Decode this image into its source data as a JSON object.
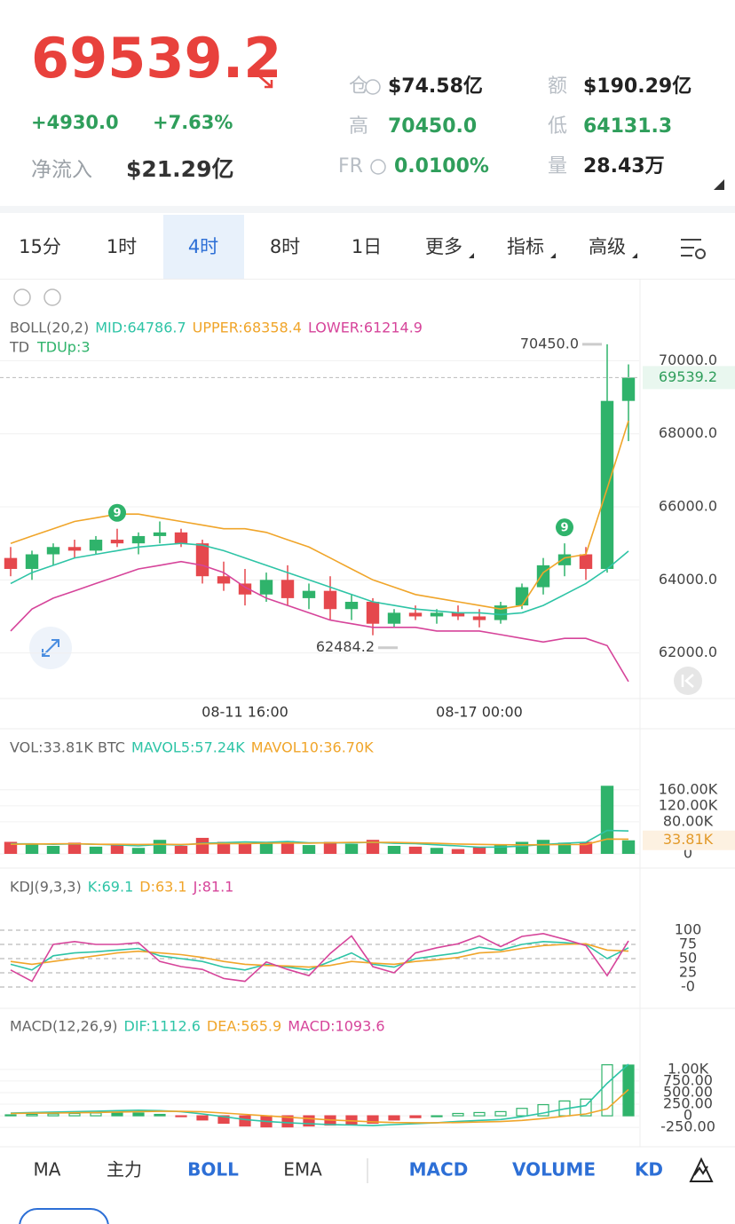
{
  "header": {
    "price": "69539.2",
    "change": "+4930.0",
    "change_pct": "+7.63%",
    "net_inflow_label": "净流入",
    "net_inflow": "$21.29亿",
    "stats": [
      {
        "label": "仓",
        "value": "$74.58亿",
        "color": "#222222"
      },
      {
        "label": "额",
        "value": "$190.29亿",
        "color": "#222222"
      },
      {
        "label": "高",
        "value": "70450.0",
        "color": "#2f9e5b"
      },
      {
        "label": "低",
        "value": "64131.3",
        "color": "#2f9e5b"
      },
      {
        "label": "FR",
        "value": "0.0100%",
        "color": "#2f9e5b"
      },
      {
        "label": "量",
        "value": "28.43万",
        "color": "#222222"
      }
    ]
  },
  "timeframes": [
    "15分",
    "1时",
    "4时",
    "8时",
    "1日"
  ],
  "active_timeframe": 2,
  "menus": [
    "更多",
    "指标",
    "高级"
  ],
  "indicator_tabs": [
    {
      "text": "MA",
      "active": false
    },
    {
      "text": "主力",
      "active": false
    },
    {
      "text": "BOLL",
      "active": true
    },
    {
      "text": "EMA",
      "active": false
    }
  ],
  "sub_tabs": [
    {
      "text": "MACD",
      "active": true
    },
    {
      "text": "VOLUME",
      "active": true
    },
    {
      "text": "KD",
      "active": true
    }
  ],
  "chart_data": [
    {
      "type": "candlestick",
      "title": "BOLL(20,2)",
      "up_color": "#2fb36b",
      "down_color": "#e5484d",
      "grid": true,
      "categories": [
        null,
        null,
        null,
        null,
        null,
        null,
        null,
        null,
        null,
        null,
        null,
        "08-11 16:00",
        null,
        null,
        null,
        null,
        null,
        null,
        null,
        null,
        null,
        null,
        "08-17 00:00",
        null,
        null,
        null,
        null,
        null,
        null,
        null
      ],
      "open": [
        64600,
        64300,
        64700,
        64900,
        64800,
        65100,
        65000,
        65200,
        65300,
        65000,
        64100,
        63900,
        63600,
        64000,
        63500,
        63700,
        63200,
        63400,
        62800,
        63100,
        63000,
        63100,
        63000,
        62900,
        63300,
        63800,
        64400,
        64700,
        64300,
        68900
      ],
      "high": [
        64900,
        64800,
        65000,
        65100,
        65200,
        65400,
        65300,
        65600,
        65400,
        65100,
        64500,
        64300,
        64200,
        64400,
        63900,
        64100,
        63600,
        63500,
        63200,
        63300,
        63200,
        63300,
        63200,
        63400,
        63900,
        64600,
        65000,
        64900,
        70450,
        69900
      ],
      "low": [
        64100,
        64000,
        64400,
        64600,
        64700,
        64900,
        64700,
        65000,
        64900,
        63900,
        63700,
        63300,
        63400,
        63300,
        63200,
        62900,
        62900,
        62484.2,
        62700,
        62900,
        62800,
        62900,
        62700,
        62800,
        63200,
        63600,
        64100,
        64000,
        64200,
        67800
      ],
      "close": [
        64300,
        64700,
        64900,
        64800,
        65100,
        65000,
        65200,
        65300,
        65000,
        64100,
        63900,
        63600,
        64000,
        63500,
        63700,
        63200,
        63400,
        62800,
        63100,
        63000,
        63100,
        63000,
        62900,
        63300,
        63800,
        64400,
        64700,
        64300,
        68900,
        69539.2
      ],
      "overlays": [
        {
          "name": "MID:64786.7",
          "color": "#2ec4a6",
          "values": [
            63900,
            64200,
            64400,
            64600,
            64700,
            64800,
            64900,
            64950,
            65000,
            64950,
            64800,
            64600,
            64400,
            64200,
            64000,
            63800,
            63600,
            63400,
            63300,
            63200,
            63150,
            63100,
            63100,
            63050,
            63100,
            63300,
            63600,
            63900,
            64300,
            64786.7
          ]
        },
        {
          "name": "UPPER:68358.4",
          "color": "#f0a52a",
          "values": [
            65000,
            65200,
            65400,
            65600,
            65700,
            65800,
            65800,
            65700,
            65600,
            65500,
            65400,
            65400,
            65300,
            65100,
            64900,
            64600,
            64300,
            64000,
            63800,
            63600,
            63500,
            63400,
            63300,
            63200,
            63300,
            64200,
            64600,
            64700,
            66500,
            68358.4
          ]
        },
        {
          "name": "LOWER:61214.9",
          "color": "#d6449a",
          "values": [
            62600,
            63200,
            63500,
            63700,
            63900,
            64100,
            64300,
            64400,
            64500,
            64400,
            64200,
            63800,
            63500,
            63300,
            63100,
            62900,
            62800,
            62700,
            62700,
            62700,
            62600,
            62600,
            62600,
            62500,
            62400,
            62300,
            62400,
            62400,
            62200,
            61214.9
          ]
        }
      ],
      "td_label": "TD",
      "td_value": "TDUp:3",
      "td_markers": [
        {
          "index": 5,
          "text": "9"
        },
        {
          "index": 26,
          "text": "9"
        }
      ],
      "high_marker": {
        "index": 28,
        "value": 70450,
        "label": "70450.0"
      },
      "low_marker": {
        "index": 17,
        "value": 62484.2,
        "label": "62484.2"
      },
      "last_price": {
        "value": 69539.2,
        "label": "69539.2"
      },
      "ylim": [
        60800,
        72100
      ],
      "yticks": [
        {
          "value": 62000,
          "label": "62000.0"
        },
        {
          "value": 64000,
          "label": "64000.0"
        },
        {
          "value": 66000,
          "label": "66000.0"
        },
        {
          "value": 68000,
          "label": "68000.0"
        },
        {
          "value": 70000,
          "label": "70000.0"
        }
      ]
    },
    {
      "type": "volume",
      "title": "VOL:33.81K BTC",
      "values": [
        30000,
        25000,
        20000,
        28000,
        18000,
        22000,
        15000,
        35000,
        20000,
        40000,
        30000,
        25000,
        28000,
        32000,
        22000,
        30000,
        25000,
        35000,
        20000,
        18000,
        15000,
        12000,
        18000,
        22000,
        30000,
        35000,
        28000,
        30000,
        170000,
        33810
      ],
      "series": [
        {
          "name": "MAVOL5:57.24K",
          "color": "#2ec4a6",
          "values": [
            25000,
            25000,
            24000,
            25000,
            24000,
            22600,
            20000,
            23600,
            22000,
            26400,
            28000,
            30000,
            28600,
            31000,
            27400,
            27400,
            27400,
            28800,
            26400,
            25600,
            22600,
            20000,
            16600,
            17000,
            19400,
            23400,
            26600,
            29000,
            58600,
            57240
          ]
        },
        {
          "name": "MAVOL10:36.70K",
          "color": "#f0a52a",
          "values": [
            24000,
            24500,
            25000,
            25500,
            24000,
            24000,
            23500,
            24000,
            23500,
            25000,
            25800,
            25800,
            26600,
            27000,
            26500,
            27700,
            28700,
            28700,
            28500,
            27400,
            26300,
            24500,
            23800,
            22900,
            22500,
            22900,
            23200,
            23400,
            37100,
            36700
          ]
        }
      ],
      "last_value": {
        "value": 33810,
        "label": "33.81K"
      },
      "ylim": [
        0,
        226000
      ],
      "yticks": [
        0,
        {
          "value": 80000,
          "label": "80.00K"
        },
        {
          "value": 120000,
          "label": "120.00K"
        },
        {
          "value": 160000,
          "label": "160.00K"
        }
      ]
    },
    {
      "type": "line",
      "title": "KDJ(9,3,3)",
      "series": [
        {
          "name": "K:69.1",
          "color": "#2ec4a6",
          "values": [
            40,
            30,
            55,
            60,
            62,
            65,
            68,
            55,
            50,
            45,
            35,
            30,
            40,
            35,
            30,
            45,
            60,
            40,
            35,
            50,
            55,
            60,
            70,
            65,
            75,
            80,
            78,
            75,
            50,
            69.1
          ]
        },
        {
          "name": "D:63.1",
          "color": "#f0a52a",
          "values": [
            45,
            40,
            45,
            50,
            55,
            60,
            63,
            60,
            57,
            52,
            45,
            40,
            38,
            37,
            35,
            38,
            45,
            42,
            40,
            45,
            48,
            52,
            60,
            62,
            68,
            73,
            75,
            76,
            65,
            63.1
          ]
        },
        {
          "name": "J:81.1",
          "color": "#d6449a",
          "values": [
            30,
            10,
            75,
            80,
            75,
            75,
            78,
            45,
            36,
            31,
            15,
            10,
            44,
            31,
            20,
            59,
            90,
            36,
            25,
            60,
            69,
            76,
            90,
            71,
            89,
            94,
            84,
            73,
            20,
            81.1
          ]
        }
      ],
      "ylim": [
        -28,
        128
      ],
      "yticks": [
        {
          "value": 0,
          "label": "-0"
        },
        25,
        50,
        75,
        100
      ]
    },
    {
      "type": "macd",
      "title": "MACD(12,26,9)",
      "series": [
        {
          "name": "DIF:1112.6",
          "color": "#2ec4a6",
          "values": [
            60,
            70,
            80,
            90,
            100,
            110,
            120,
            110,
            90,
            40,
            -20,
            -80,
            -120,
            -150,
            -170,
            -190,
            -200,
            -210,
            -190,
            -170,
            -150,
            -120,
            -100,
            -80,
            -20,
            60,
            150,
            220,
            700,
            1112.6
          ]
        },
        {
          "name": "DEA:565.9",
          "color": "#f0a52a",
          "values": [
            50,
            55,
            60,
            65,
            70,
            80,
            90,
            95,
            95,
            85,
            60,
            30,
            0,
            -30,
            -60,
            -90,
            -110,
            -130,
            -145,
            -150,
            -150,
            -145,
            -135,
            -125,
            -100,
            -60,
            -10,
            40,
            150,
            565.9
          ]
        }
      ],
      "histogram": {
        "name": "MACD:1093.6",
        "color": "#d6449a",
        "up_color": "#2fb36b",
        "down_color": "#e5484d",
        "values": [
          20,
          30,
          40,
          50,
          60,
          60,
          60,
          30,
          -10,
          -90,
          -160,
          -220,
          -240,
          -240,
          -220,
          -200,
          -180,
          -160,
          -90,
          -40,
          0,
          50,
          70,
          90,
          160,
          240,
          320,
          360,
          1100,
          1093.6
        ]
      },
      "ylim": [
        -630,
        1380
      ],
      "yticks": [
        {
          "value": -250,
          "label": "-250.00"
        },
        0,
        {
          "value": 250,
          "label": "250.00"
        },
        {
          "value": 500,
          "label": "500.00"
        },
        {
          "value": 750,
          "label": "750.00"
        },
        {
          "value": 1000,
          "label": "1.00K"
        }
      ]
    }
  ]
}
